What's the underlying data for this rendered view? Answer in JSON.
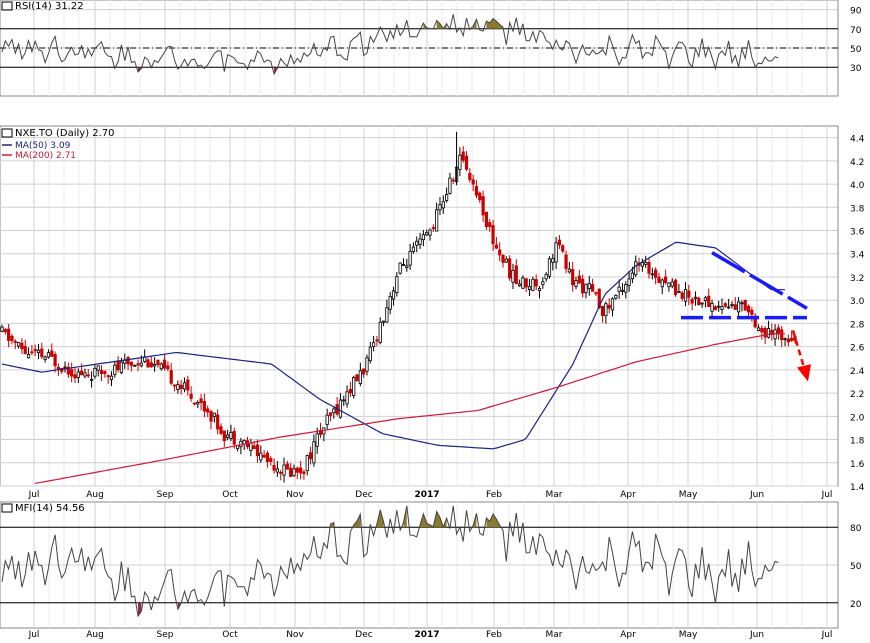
{
  "rsi_panel": {
    "label": "RSI(14) 31.22",
    "ylim": [
      0,
      100
    ],
    "ticks": [
      90,
      70,
      50,
      30
    ],
    "overbought": 70,
    "oversold": 30,
    "centerline": 50
  },
  "price_panel": {
    "label": "NXE.TO (Daily) 2.70",
    "ma50_label": "MA(50) 3.09",
    "ma200_label": "MA(200) 2.71",
    "ylim": [
      1.4,
      4.5
    ],
    "ticks": [
      "4.4",
      "4.2",
      "4.0",
      "3.8",
      "3.6",
      "3.4",
      "3.2",
      "3.0",
      "2.8",
      "2.6",
      "2.4",
      "2.2",
      "2.0",
      "1.8",
      "1.6",
      "1.4"
    ]
  },
  "mfi_panel": {
    "label": "MFI(14) 54.56",
    "ylim": [
      0,
      100
    ],
    "ticks": [
      80,
      50,
      20
    ],
    "overbought": 80,
    "oversold": 20
  },
  "month_labels": [
    "Jul",
    "Aug",
    "Sep",
    "Oct",
    "Nov",
    "Dec",
    "2017",
    "Feb",
    "Mar",
    "Apr",
    "May",
    "Jun",
    "Jul"
  ],
  "colors": {
    "up_candle": "#000000",
    "down_candle": "#cc0000",
    "ma50": "#1a237e",
    "ma200": "#cc1a3a",
    "trendline": "#1a1aff",
    "breakdown_arrow": "#ff0000",
    "overbought_fill": "#8a7a30",
    "oversold_fill": "#8a2a4a",
    "grid": "#d0d0d0",
    "panel_bg": "#ffffff"
  },
  "chart_data": [
    {
      "type": "line",
      "name": "RSI(14)",
      "ylim": [
        0,
        100
      ],
      "x": [
        "Jul",
        "Aug",
        "Sep",
        "Oct",
        "Nov",
        "Dec",
        "2017",
        "Feb",
        "Mar",
        "Apr",
        "May",
        "Jun"
      ],
      "values": [
        52,
        48,
        38,
        40,
        35,
        55,
        75,
        72,
        45,
        47,
        42,
        40
      ]
    },
    {
      "type": "line",
      "title": "NXE.TO (Daily) 2.70",
      "series": [
        {
          "name": "MA(50) 3.09",
          "anchors_x": [
            0,
            5,
            15,
            22,
            34,
            40,
            48,
            55,
            62,
            66,
            72,
            76,
            80,
            85,
            90,
            97
          ],
          "values": [
            2.45,
            2.38,
            2.48,
            2.55,
            2.45,
            2.15,
            1.85,
            1.75,
            1.72,
            1.8,
            2.45,
            3.05,
            3.3,
            3.5,
            3.45,
            3.09
          ]
        },
        {
          "name": "MA(200) 2.71",
          "anchors_x": [
            4,
            20,
            35,
            50,
            60,
            70,
            80,
            90,
            97
          ],
          "values": [
            1.42,
            1.62,
            1.82,
            1.98,
            2.05,
            2.25,
            2.47,
            2.62,
            2.71
          ]
        },
        {
          "name": "price",
          "anchors_x": [
            0,
            3,
            6,
            10,
            14,
            18,
            22,
            26,
            28,
            30,
            33,
            36,
            38,
            40,
            43,
            46,
            50,
            54,
            58,
            60,
            62,
            64,
            65,
            68,
            70,
            72,
            74,
            76,
            78,
            80,
            82,
            84,
            86,
            88,
            90,
            92,
            94,
            96,
            97
          ],
          "values": [
            2.72,
            2.55,
            2.5,
            2.35,
            2.4,
            2.5,
            2.3,
            2.05,
            1.85,
            1.8,
            1.65,
            1.52,
            1.55,
            1.85,
            2.15,
            2.45,
            3.25,
            3.6,
            4.25,
            3.9,
            3.5,
            3.25,
            3.15,
            3.15,
            3.5,
            3.15,
            3.1,
            2.9,
            3.1,
            3.3,
            3.25,
            3.15,
            3.05,
            3.0,
            2.95,
            2.95,
            2.95,
            2.7,
            2.7
          ]
        }
      ],
      "annotations": [
        "descending trendline from May high",
        "horizontal support ~2.85",
        "red dashed breakdown arrow"
      ]
    },
    {
      "type": "line",
      "name": "MFI(14)",
      "ylim": [
        0,
        100
      ],
      "x": [
        "Jul",
        "Aug",
        "Sep",
        "Oct",
        "Nov",
        "Dec",
        "2017",
        "Feb",
        "Mar",
        "Apr",
        "May",
        "Jun"
      ],
      "values": [
        45,
        60,
        25,
        35,
        45,
        75,
        88,
        78,
        45,
        55,
        38,
        55
      ]
    }
  ]
}
